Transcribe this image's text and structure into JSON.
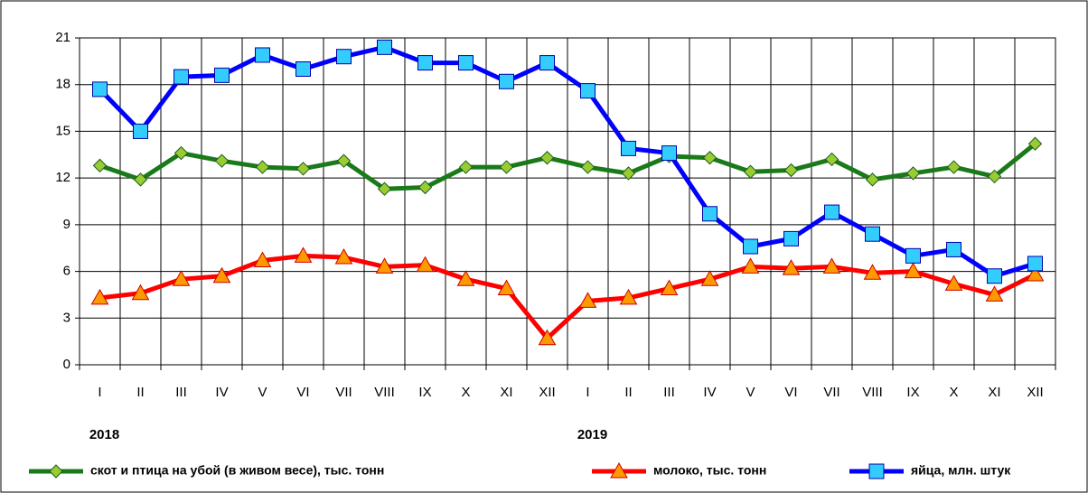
{
  "chart_data": {
    "type": "line",
    "categories": [
      "I",
      "II",
      "III",
      "IV",
      "V",
      "VI",
      "VII",
      "VIII",
      "IX",
      "X",
      "XI",
      "XII",
      "I",
      "II",
      "III",
      "IV",
      "V",
      "VI",
      "VII",
      "VIII",
      "IX",
      "X",
      "XI",
      "XII"
    ],
    "year_labels": [
      "2018",
      "2019"
    ],
    "series": [
      {
        "name": "скот и птица на убой (в живом весе), тыс. тонн",
        "color": "#1a7a1a",
        "marker_color": "#99cc33",
        "marker": "diamond",
        "values": [
          12.8,
          11.9,
          13.6,
          13.1,
          12.7,
          12.6,
          13.1,
          11.3,
          11.4,
          12.7,
          12.7,
          13.3,
          12.7,
          12.3,
          13.4,
          13.3,
          12.4,
          12.5,
          13.2,
          11.9,
          12.3,
          12.7,
          12.1,
          14.2
        ]
      },
      {
        "name": "молоко, тыс. тонн",
        "color": "#ff0000",
        "marker_color": "#ff9900",
        "marker": "triangle",
        "values": [
          4.3,
          4.6,
          5.5,
          5.7,
          6.7,
          7.0,
          6.9,
          6.3,
          6.4,
          5.5,
          4.9,
          1.7,
          4.1,
          4.3,
          4.9,
          5.5,
          6.3,
          6.2,
          6.3,
          5.9,
          6.0,
          5.2,
          4.5,
          5.8
        ]
      },
      {
        "name": "яйца, млн. штук",
        "color": "#0000ff",
        "marker_color": "#33ccff",
        "marker": "square",
        "values": [
          17.7,
          15.0,
          18.5,
          18.6,
          19.9,
          19.0,
          19.8,
          20.4,
          19.4,
          19.4,
          18.2,
          19.4,
          17.6,
          13.9,
          13.6,
          9.7,
          7.6,
          8.1,
          9.8,
          8.4,
          7.0,
          7.4,
          5.7,
          6.5
        ]
      }
    ],
    "ylim": [
      0,
      21
    ],
    "yticks": [
      0,
      3,
      6,
      9,
      12,
      15,
      18,
      21
    ],
    "grid": true,
    "legend": "bottom"
  }
}
